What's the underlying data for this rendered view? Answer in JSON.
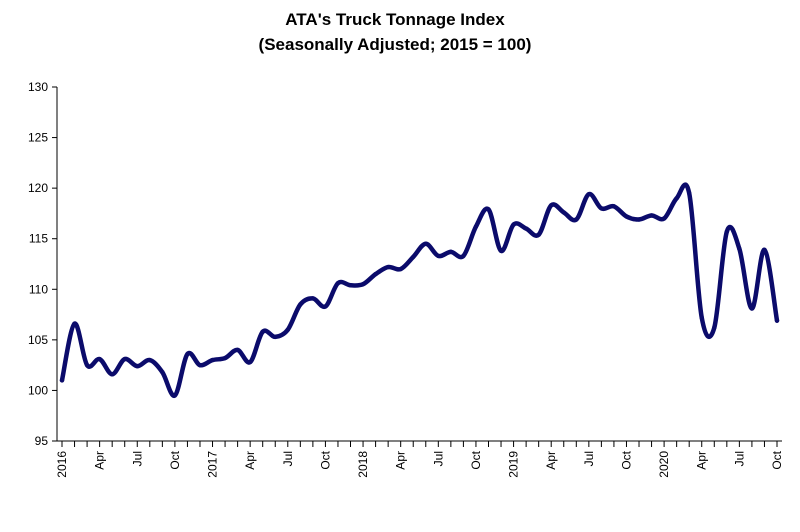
{
  "chart_data": {
    "type": "line",
    "title": "ATA's Truck Tonnage Index",
    "subtitle": "(Seasonally Adjusted; 2015 = 100)",
    "xlabel": "",
    "ylabel": "",
    "ylim": [
      95,
      130
    ],
    "yticks": [
      95,
      100,
      105,
      110,
      115,
      120,
      125,
      130
    ],
    "xtick_labels": [
      "2016",
      "Apr",
      "Jul",
      "Oct",
      "2017",
      "Apr",
      "Jul",
      "Oct",
      "2018",
      "Apr",
      "Jul",
      "Oct",
      "2019",
      "Apr",
      "Jul",
      "Oct",
      "2020",
      "Apr",
      "Jul",
      "Oct"
    ],
    "x_start": "2016-01",
    "x_end": "2020-10",
    "grid": false,
    "legend": "none",
    "line_color": "#0b0b6b",
    "series": [
      {
        "values": [
          101.0,
          106.6,
          102.5,
          103.1,
          101.6,
          103.1,
          102.4,
          103.0,
          101.8,
          99.5,
          103.6,
          102.5,
          103.0,
          103.2,
          104.0,
          102.8,
          105.8,
          105.3,
          106.0,
          108.5,
          109.1,
          108.3,
          110.6,
          110.4,
          110.5,
          111.5,
          112.2,
          112.0,
          113.2,
          114.5,
          113.3,
          113.7,
          113.3,
          116.2,
          117.9,
          113.8,
          116.4,
          116.0,
          115.4,
          118.3,
          117.6,
          116.9,
          119.4,
          118.0,
          118.2,
          117.2,
          116.9,
          117.3,
          117.0,
          119.0,
          119.5,
          107.2,
          106.2,
          115.7,
          114.0,
          108.1,
          113.9,
          106.9
        ]
      }
    ]
  }
}
